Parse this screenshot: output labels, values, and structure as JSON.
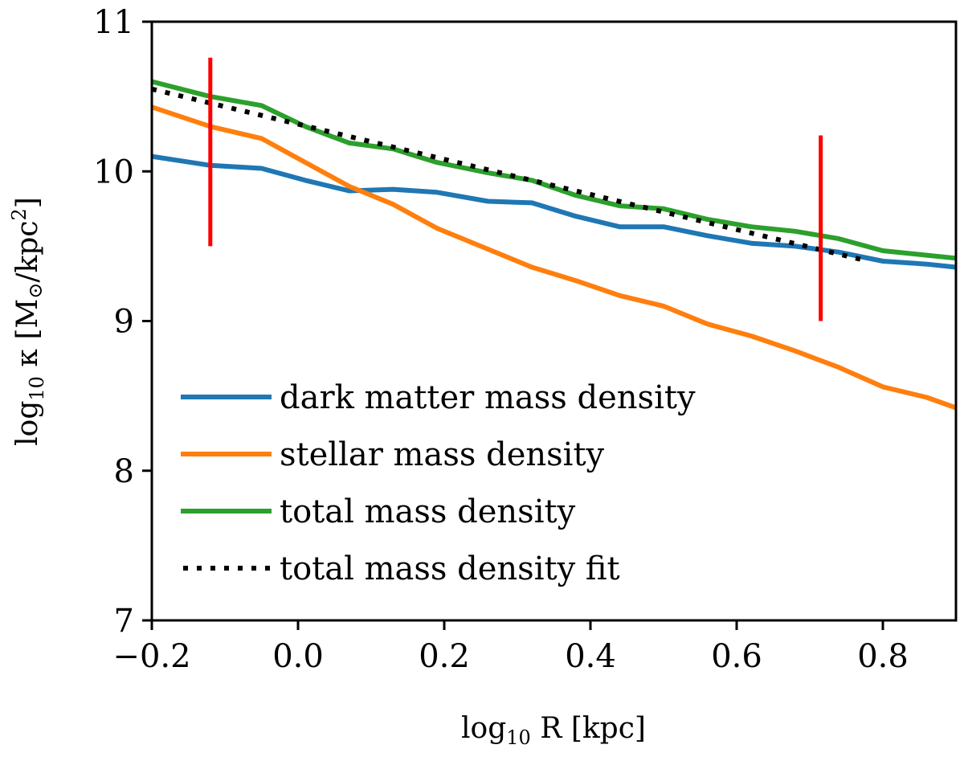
{
  "chart_data": {
    "type": "line",
    "title": "",
    "xlabel": "log10 R [kpc]",
    "xlabel_parts": {
      "main": "log",
      "sub": "10",
      "rest": " R [kpc]"
    },
    "ylabel": "log10 κ [M⊙/kpc²]",
    "ylabel_parts": {
      "main": "log",
      "sub": "10",
      "rest": " κ [M",
      "sun": "⊙",
      "rest2": "/kpc",
      "sup": "2",
      "close": "]"
    },
    "xlim": [
      -0.2,
      0.9
    ],
    "ylim": [
      7,
      11
    ],
    "xticks": [
      -0.2,
      0.0,
      0.2,
      0.4,
      0.6,
      0.8
    ],
    "xtick_labels": [
      "−0.2",
      "0.0",
      "0.2",
      "0.4",
      "0.6",
      "0.8"
    ],
    "yticks": [
      7,
      8,
      9,
      10,
      11
    ],
    "ytick_labels": [
      "7",
      "8",
      "9",
      "10",
      "11"
    ],
    "grid": false,
    "legend_position": "lower-left",
    "series": [
      {
        "name": "dark matter mass density",
        "color": "#1f77b4",
        "style": "solid",
        "x": [
          -0.2,
          -0.12,
          -0.05,
          0.01,
          0.07,
          0.13,
          0.19,
          0.26,
          0.32,
          0.38,
          0.44,
          0.5,
          0.56,
          0.62,
          0.68,
          0.74,
          0.8,
          0.86,
          0.9
        ],
        "y": [
          10.1,
          10.04,
          10.02,
          9.94,
          9.87,
          9.88,
          9.86,
          9.8,
          9.79,
          9.7,
          9.63,
          9.63,
          9.57,
          9.52,
          9.5,
          9.46,
          9.4,
          9.38,
          9.36
        ]
      },
      {
        "name": "stellar mass density",
        "color": "#ff7f0e",
        "style": "solid",
        "x": [
          -0.2,
          -0.12,
          -0.05,
          0.01,
          0.07,
          0.13,
          0.19,
          0.26,
          0.32,
          0.38,
          0.44,
          0.5,
          0.56,
          0.62,
          0.68,
          0.74,
          0.8,
          0.86,
          0.9
        ],
        "y": [
          10.43,
          10.3,
          10.22,
          10.06,
          9.9,
          9.78,
          9.62,
          9.48,
          9.36,
          9.27,
          9.17,
          9.1,
          8.98,
          8.9,
          8.8,
          8.69,
          8.56,
          8.49,
          8.42
        ]
      },
      {
        "name": "total mass density",
        "color": "#2ca02c",
        "style": "solid",
        "x": [
          -0.2,
          -0.12,
          -0.05,
          0.01,
          0.07,
          0.13,
          0.19,
          0.26,
          0.32,
          0.38,
          0.44,
          0.5,
          0.56,
          0.62,
          0.68,
          0.74,
          0.8,
          0.86,
          0.9
        ],
        "y": [
          10.6,
          10.5,
          10.44,
          10.3,
          10.19,
          10.15,
          10.06,
          9.99,
          9.94,
          9.84,
          9.77,
          9.75,
          9.68,
          9.63,
          9.6,
          9.55,
          9.47,
          9.44,
          9.42
        ]
      },
      {
        "name": "total mass density fit",
        "color": "#000000",
        "style": "dotted",
        "x": [
          -0.2,
          0.78
        ],
        "y": [
          10.55,
          9.4
        ]
      }
    ],
    "annotations": [
      {
        "type": "vertical-line",
        "x": -0.12,
        "y_range": [
          9.5,
          10.76
        ],
        "color": "#ff0000"
      },
      {
        "type": "vertical-line",
        "x": 0.715,
        "y_range": [
          9.0,
          10.24
        ],
        "color": "#ff0000"
      }
    ]
  }
}
